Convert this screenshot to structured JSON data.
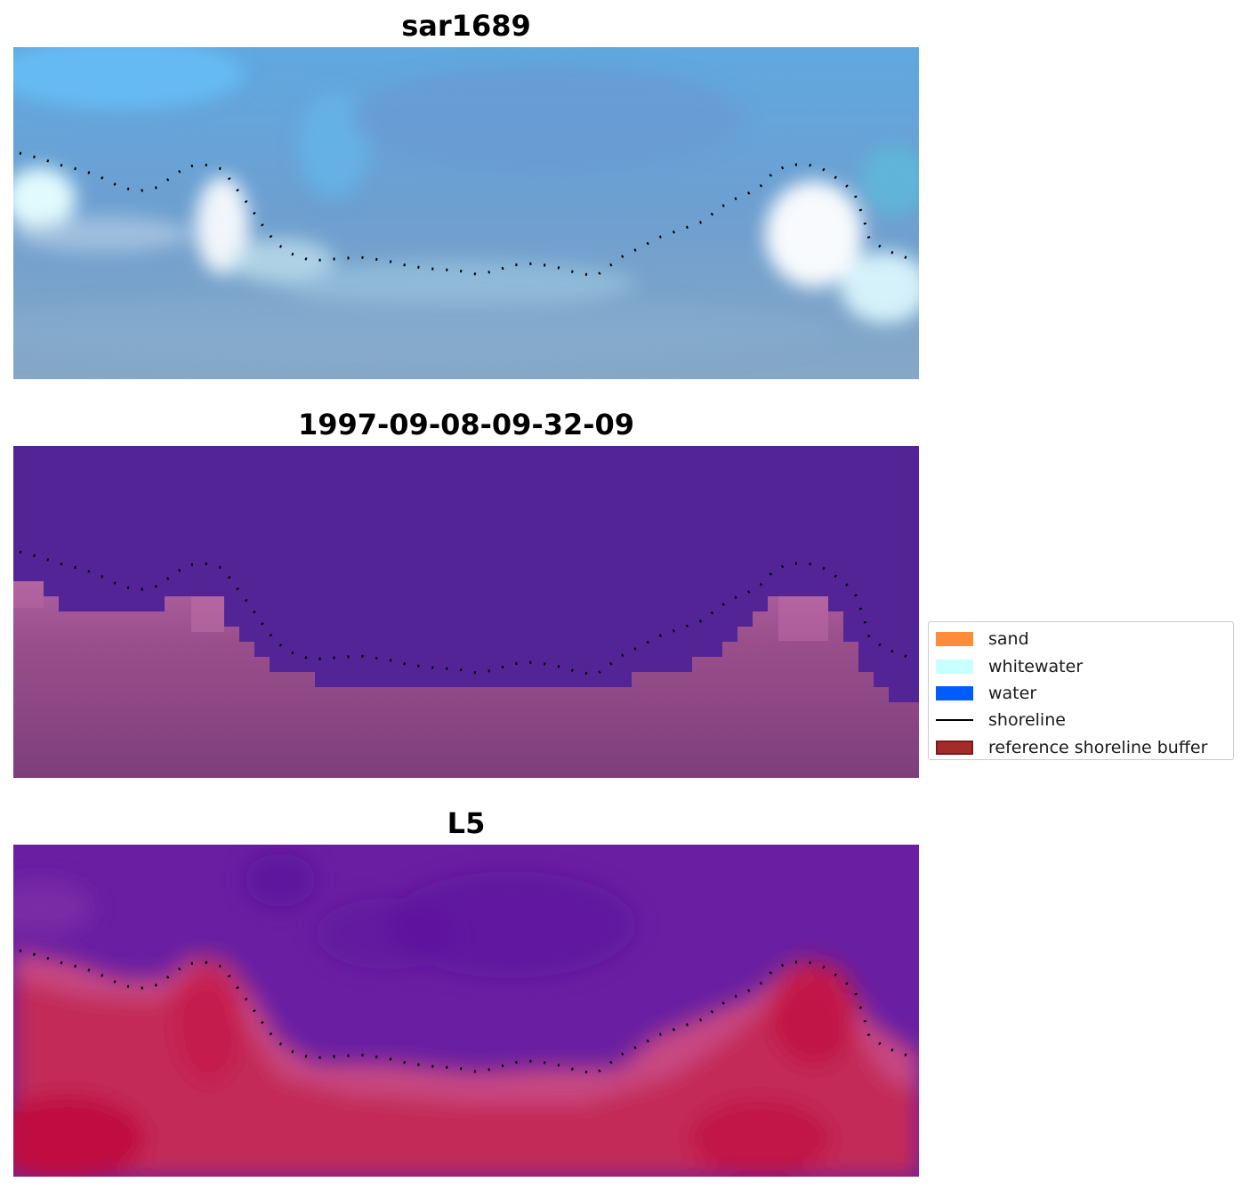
{
  "panels": [
    {
      "title": "sar1689"
    },
    {
      "title": "1997-09-08-09-32-09"
    },
    {
      "title": "L5"
    }
  ],
  "legend": {
    "items": [
      {
        "label": "sand",
        "color": "#ff8c3a",
        "kind": "patch"
      },
      {
        "label": "whitewater",
        "color": "#c8ffff",
        "kind": "patch"
      },
      {
        "label": "water",
        "color": "#005cff",
        "kind": "patch"
      },
      {
        "label": "shoreline",
        "color": "#000000",
        "kind": "line"
      },
      {
        "label": "reference shoreline buffer",
        "color": "#a52a2a",
        "edge": "#7a1a1a",
        "kind": "patch"
      }
    ]
  }
}
